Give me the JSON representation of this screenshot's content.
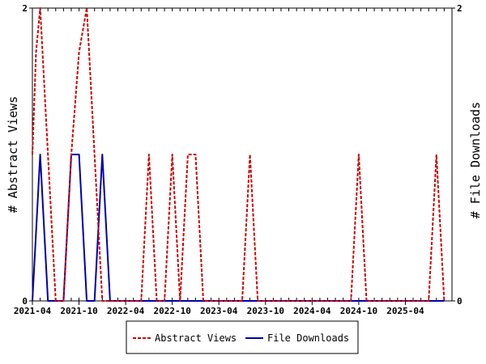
{
  "chart_data": {
    "type": "line",
    "x_labels": [
      "2021-04",
      "2021-10",
      "2022-04",
      "2022-10",
      "2023-04",
      "2023-10",
      "2024-04",
      "2024-10",
      "2025-04"
    ],
    "x_start": "2021-04",
    "x_end": "2025-10",
    "y_left_label": "# Abstract Views",
    "y_right_label": "# File Downloads",
    "y_left_range": [
      0,
      2
    ],
    "y_right_range": [
      0,
      2
    ],
    "y_left_ticks": [
      "0",
      "2"
    ],
    "y_right_ticks": [
      "0",
      "2"
    ],
    "legend_position": "bottom-center",
    "series": [
      {
        "name": "Abstract Views",
        "axis": "left",
        "color": "#cc0000",
        "style": "dashed",
        "points": [
          [
            "2021-04-01",
            1.0
          ],
          [
            "2021-04-15",
            1.7
          ],
          [
            "2021-05-01",
            2.0
          ],
          [
            "2021-06-01",
            1.0
          ],
          [
            "2021-07-01",
            0.0
          ],
          [
            "2021-08-01",
            0.0
          ],
          [
            "2021-09-01",
            1.0
          ],
          [
            "2021-10-01",
            1.7
          ],
          [
            "2021-11-01",
            2.0
          ],
          [
            "2021-12-01",
            1.0
          ],
          [
            "2022-01-01",
            0.0
          ],
          [
            "2022-02-01",
            0.0
          ],
          [
            "2022-03-01",
            0.0
          ],
          [
            "2022-04-01",
            0.0
          ],
          [
            "2022-05-01",
            0.0
          ],
          [
            "2022-06-01",
            0.0
          ],
          [
            "2022-07-01",
            1.0
          ],
          [
            "2022-08-01",
            0.0
          ],
          [
            "2022-09-01",
            0.0
          ],
          [
            "2022-10-01",
            1.0
          ],
          [
            "2022-11-01",
            0.0
          ],
          [
            "2022-12-01",
            1.0
          ],
          [
            "2023-01-01",
            1.0
          ],
          [
            "2023-02-01",
            0.0
          ],
          [
            "2023-03-01",
            0.0
          ],
          [
            "2023-04-01",
            0.0
          ],
          [
            "2023-05-01",
            0.0
          ],
          [
            "2023-06-01",
            0.0
          ],
          [
            "2023-07-01",
            0.0
          ],
          [
            "2023-08-01",
            1.0
          ],
          [
            "2023-09-01",
            0.0
          ],
          [
            "2023-10-01",
            0.0
          ],
          [
            "2023-11-01",
            0.0
          ],
          [
            "2023-12-01",
            0.0
          ],
          [
            "2024-01-01",
            0.0
          ],
          [
            "2024-02-01",
            0.0
          ],
          [
            "2024-03-01",
            0.0
          ],
          [
            "2024-04-01",
            0.0
          ],
          [
            "2024-05-01",
            0.0
          ],
          [
            "2024-06-01",
            0.0
          ],
          [
            "2024-07-01",
            0.0
          ],
          [
            "2024-08-01",
            0.0
          ],
          [
            "2024-09-01",
            0.0
          ],
          [
            "2024-10-01",
            1.0
          ],
          [
            "2024-11-01",
            0.0
          ],
          [
            "2024-12-01",
            0.0
          ],
          [
            "2025-01-01",
            0.0
          ],
          [
            "2025-02-01",
            0.0
          ],
          [
            "2025-03-01",
            0.0
          ],
          [
            "2025-04-01",
            0.0
          ],
          [
            "2025-05-01",
            0.0
          ],
          [
            "2025-06-01",
            0.0
          ],
          [
            "2025-07-01",
            0.0
          ],
          [
            "2025-08-01",
            1.0
          ],
          [
            "2025-09-01",
            0.0
          ]
        ]
      },
      {
        "name": "File Downloads",
        "axis": "right",
        "color": "#0000aa",
        "style": "solid",
        "points": [
          [
            "2021-04-01",
            0.0
          ],
          [
            "2021-05-01",
            1.0
          ],
          [
            "2021-06-01",
            0.0
          ],
          [
            "2021-07-01",
            0.0
          ],
          [
            "2021-08-01",
            0.0
          ],
          [
            "2021-09-01",
            1.0
          ],
          [
            "2021-10-01",
            1.0
          ],
          [
            "2021-11-01",
            0.0
          ],
          [
            "2021-12-01",
            0.0
          ],
          [
            "2022-01-01",
            1.0
          ],
          [
            "2022-02-01",
            0.0
          ],
          [
            "2022-03-01",
            0.0
          ],
          [
            "2022-04-01",
            0.0
          ],
          [
            "2022-05-01",
            0.0
          ],
          [
            "2022-06-01",
            0.0
          ],
          [
            "2022-07-01",
            0.0
          ],
          [
            "2022-08-01",
            0.0
          ],
          [
            "2022-09-01",
            0.0
          ],
          [
            "2022-10-01",
            0.0
          ],
          [
            "2022-11-01",
            0.0
          ],
          [
            "2022-12-01",
            0.0
          ],
          [
            "2023-01-01",
            0.0
          ],
          [
            "2023-02-01",
            0.0
          ],
          [
            "2023-03-01",
            0.0
          ],
          [
            "2023-04-01",
            0.0
          ],
          [
            "2023-05-01",
            0.0
          ],
          [
            "2023-06-01",
            0.0
          ],
          [
            "2023-07-01",
            0.0
          ],
          [
            "2023-08-01",
            0.0
          ],
          [
            "2023-09-01",
            0.0
          ],
          [
            "2023-10-01",
            0.0
          ],
          [
            "2023-11-01",
            0.0
          ],
          [
            "2023-12-01",
            0.0
          ],
          [
            "2024-01-01",
            0.0
          ],
          [
            "2024-02-01",
            0.0
          ],
          [
            "2024-03-01",
            0.0
          ],
          [
            "2024-04-01",
            0.0
          ],
          [
            "2024-05-01",
            0.0
          ],
          [
            "2024-06-01",
            0.0
          ],
          [
            "2024-07-01",
            0.0
          ],
          [
            "2024-08-01",
            0.0
          ],
          [
            "2024-09-01",
            0.0
          ],
          [
            "2024-10-01",
            0.0
          ],
          [
            "2024-11-01",
            0.0
          ],
          [
            "2024-12-01",
            0.0
          ],
          [
            "2025-01-01",
            0.0
          ],
          [
            "2025-02-01",
            0.0
          ],
          [
            "2025-03-01",
            0.0
          ],
          [
            "2025-04-01",
            0.0
          ],
          [
            "2025-05-01",
            0.0
          ],
          [
            "2025-06-01",
            0.0
          ],
          [
            "2025-07-01",
            0.0
          ],
          [
            "2025-08-01",
            0.0
          ],
          [
            "2025-09-01",
            0.0
          ]
        ]
      }
    ]
  }
}
